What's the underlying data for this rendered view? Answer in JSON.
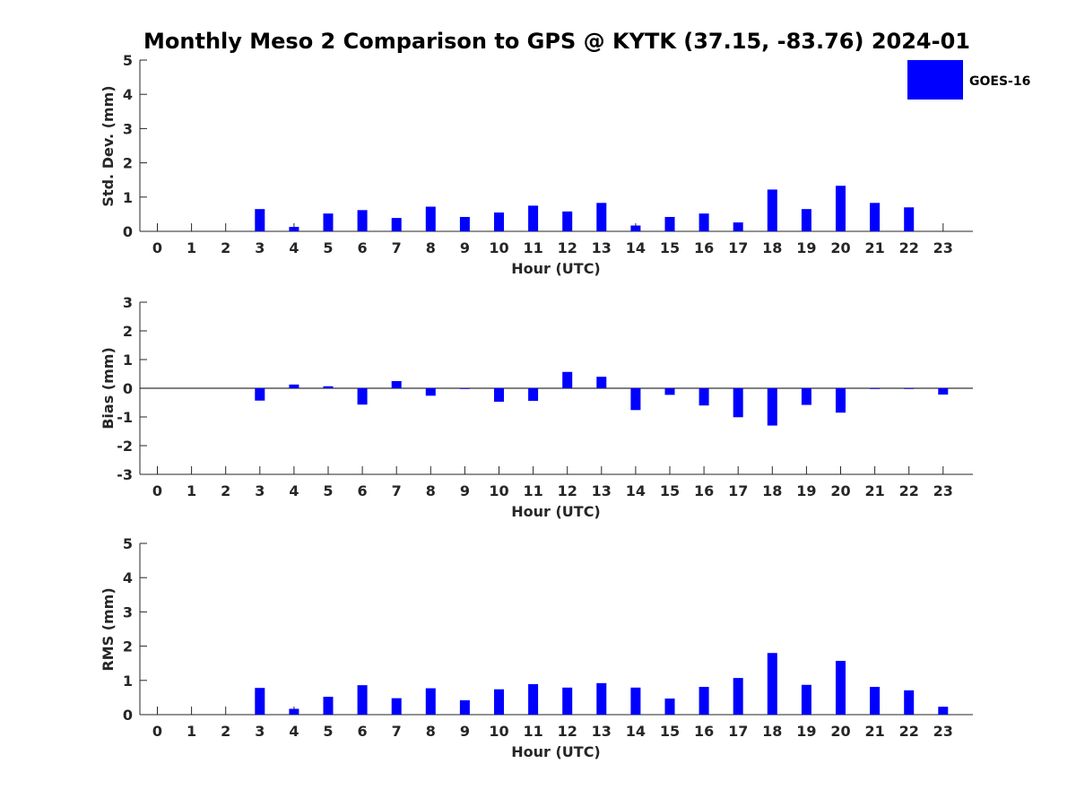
{
  "title": "Monthly Meso 2 Comparison to GPS @ KYTK (37.15, -83.76) 2024-01",
  "legend": {
    "label": "GOES-16",
    "color": "#0000ff",
    "placement": "top-right"
  },
  "chart_data": [
    {
      "type": "bar",
      "ylabel": "Std. Dev. (mm)",
      "xlabel": "Hour (UTC)",
      "categories": [
        "0",
        "1",
        "2",
        "3",
        "4",
        "5",
        "6",
        "7",
        "8",
        "9",
        "10",
        "11",
        "12",
        "13",
        "14",
        "15",
        "16",
        "17",
        "18",
        "19",
        "20",
        "21",
        "22",
        "23"
      ],
      "ylim": [
        0,
        5
      ],
      "yticks": [
        "0",
        "1",
        "2",
        "3",
        "4",
        "5"
      ],
      "series": [
        {
          "name": "GOES-16",
          "color": "#0000ff",
          "values": [
            null,
            null,
            null,
            0.65,
            0.13,
            0.52,
            0.62,
            0.39,
            0.72,
            0.42,
            0.55,
            0.75,
            0.58,
            0.83,
            0.17,
            0.42,
            0.52,
            0.26,
            1.22,
            0.65,
            1.33,
            0.83,
            0.7,
            null
          ]
        }
      ]
    },
    {
      "type": "bar",
      "ylabel": "Bias (mm)",
      "xlabel": "Hour (UTC)",
      "categories": [
        "0",
        "1",
        "2",
        "3",
        "4",
        "5",
        "6",
        "7",
        "8",
        "9",
        "10",
        "11",
        "12",
        "13",
        "14",
        "15",
        "16",
        "17",
        "18",
        "19",
        "20",
        "21",
        "22",
        "23"
      ],
      "ylim": [
        -3,
        3
      ],
      "yticks": [
        "-3",
        "-2",
        "-1",
        "0",
        "1",
        "2",
        "3"
      ],
      "zero_line": true,
      "series": [
        {
          "name": "GOES-16",
          "color": "#0000ff",
          "values": [
            null,
            null,
            null,
            -0.43,
            0.13,
            0.07,
            -0.57,
            0.25,
            -0.26,
            -0.02,
            -0.47,
            -0.44,
            0.57,
            0.4,
            -0.76,
            -0.23,
            -0.6,
            -1.01,
            -1.3,
            -0.58,
            -0.85,
            -0.02,
            -0.02,
            -0.22
          ]
        }
      ]
    },
    {
      "type": "bar",
      "ylabel": "RMS (mm)",
      "xlabel": "Hour (UTC)",
      "categories": [
        "0",
        "1",
        "2",
        "3",
        "4",
        "5",
        "6",
        "7",
        "8",
        "9",
        "10",
        "11",
        "12",
        "13",
        "14",
        "15",
        "16",
        "17",
        "18",
        "19",
        "20",
        "21",
        "22",
        "23"
      ],
      "ylim": [
        0,
        5
      ],
      "yticks": [
        "0",
        "1",
        "2",
        "3",
        "4",
        "5"
      ],
      "series": [
        {
          "name": "GOES-16",
          "color": "#0000ff",
          "values": [
            null,
            null,
            null,
            0.78,
            0.17,
            0.52,
            0.86,
            0.48,
            0.77,
            0.42,
            0.74,
            0.89,
            0.79,
            0.92,
            0.79,
            0.47,
            0.81,
            1.07,
            1.8,
            0.87,
            1.57,
            0.81,
            0.71,
            0.23
          ]
        }
      ]
    }
  ]
}
